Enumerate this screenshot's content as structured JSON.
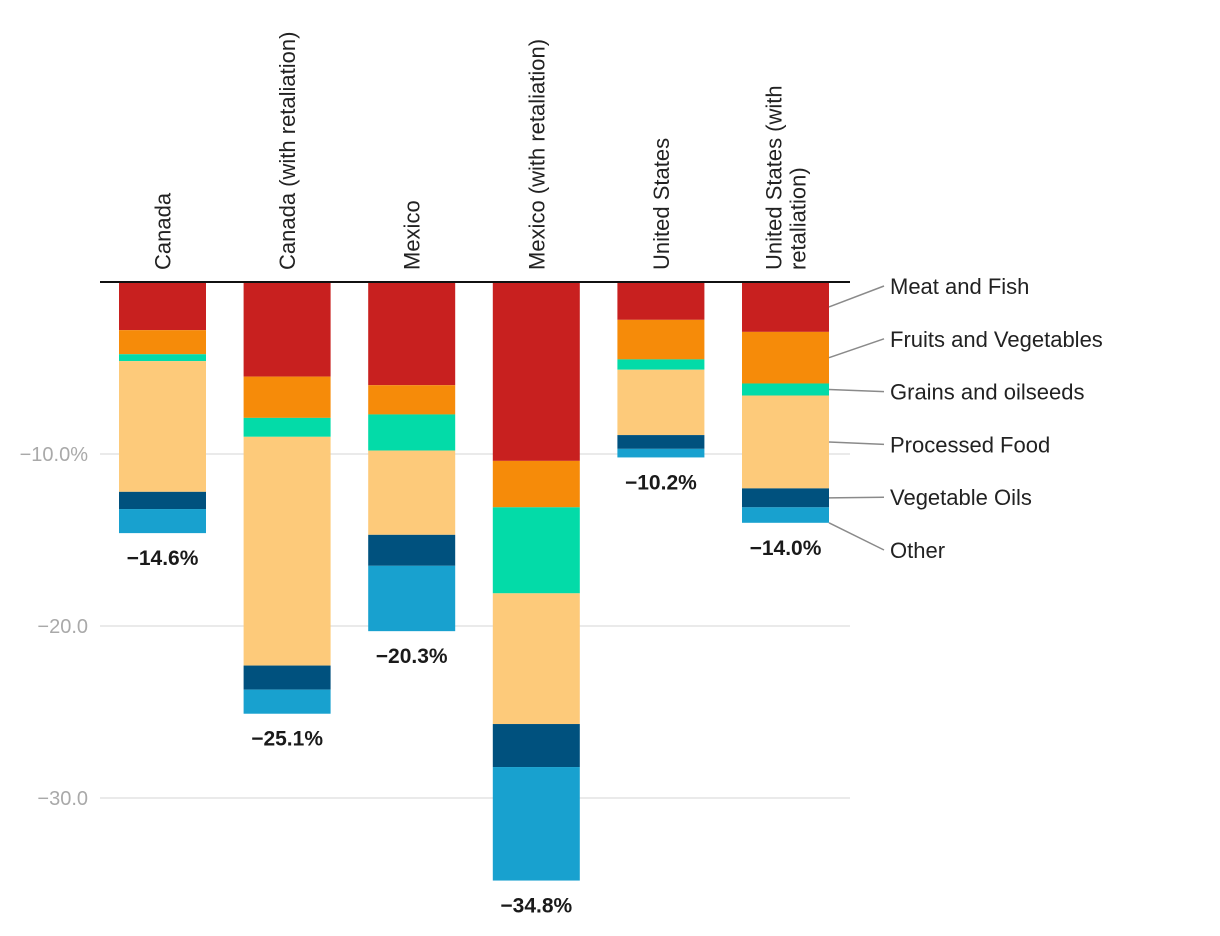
{
  "chart_data": {
    "type": "bar",
    "stacked": true,
    "title": "",
    "xlabel": "",
    "ylabel": "",
    "ylim": [
      -35,
      0
    ],
    "yticks": [
      -10,
      -20,
      -30
    ],
    "ytick_labels": [
      "−10.0%",
      "−20.0",
      "−30.0"
    ],
    "grid": true,
    "legend_position": "right",
    "categories": [
      "Canada",
      "Canada (with retaliation)",
      "Mexico",
      "Mexico (with retaliation)",
      "United States",
      "United States (with retaliation)"
    ],
    "category_lines": [
      [
        "Canada"
      ],
      [
        "Canada (with retaliation)"
      ],
      [
        "Mexico"
      ],
      [
        "Mexico (with retaliation)"
      ],
      [
        "United States"
      ],
      [
        "United States (with",
        "retaliation)"
      ]
    ],
    "series": [
      {
        "name": "Meat and Fish",
        "color": "#c8201f",
        "values": [
          -2.8,
          -5.5,
          -6.0,
          -10.4,
          -2.2,
          -2.9
        ]
      },
      {
        "name": "Fruits and Vegetables",
        "color": "#f68b09",
        "values": [
          -1.4,
          -2.4,
          -1.7,
          -2.7,
          -2.3,
          -3.0
        ]
      },
      {
        "name": "Grains and oilseeds",
        "color": "#03dba8",
        "values": [
          -0.4,
          -1.1,
          -2.1,
          -5.0,
          -0.6,
          -0.7
        ]
      },
      {
        "name": "Processed Food",
        "color": "#fdca7a",
        "values": [
          -7.6,
          -13.3,
          -4.9,
          -7.6,
          -3.8,
          -5.4
        ]
      },
      {
        "name": "Vegetable Oils",
        "color": "#00517e",
        "values": [
          -1.0,
          -1.4,
          -1.8,
          -2.5,
          -0.8,
          -1.1
        ]
      },
      {
        "name": "Other",
        "color": "#18a1cf",
        "values": [
          -1.4,
          -1.4,
          -3.8,
          -6.6,
          -0.5,
          -0.9
        ]
      }
    ],
    "totals": [
      -14.6,
      -25.1,
      -20.3,
      -34.8,
      -10.2,
      -14.0
    ],
    "total_labels": [
      "−14.6%",
      "−25.1%",
      "−20.3%",
      "−34.8%",
      "−10.2%",
      "−14.0%"
    ]
  }
}
